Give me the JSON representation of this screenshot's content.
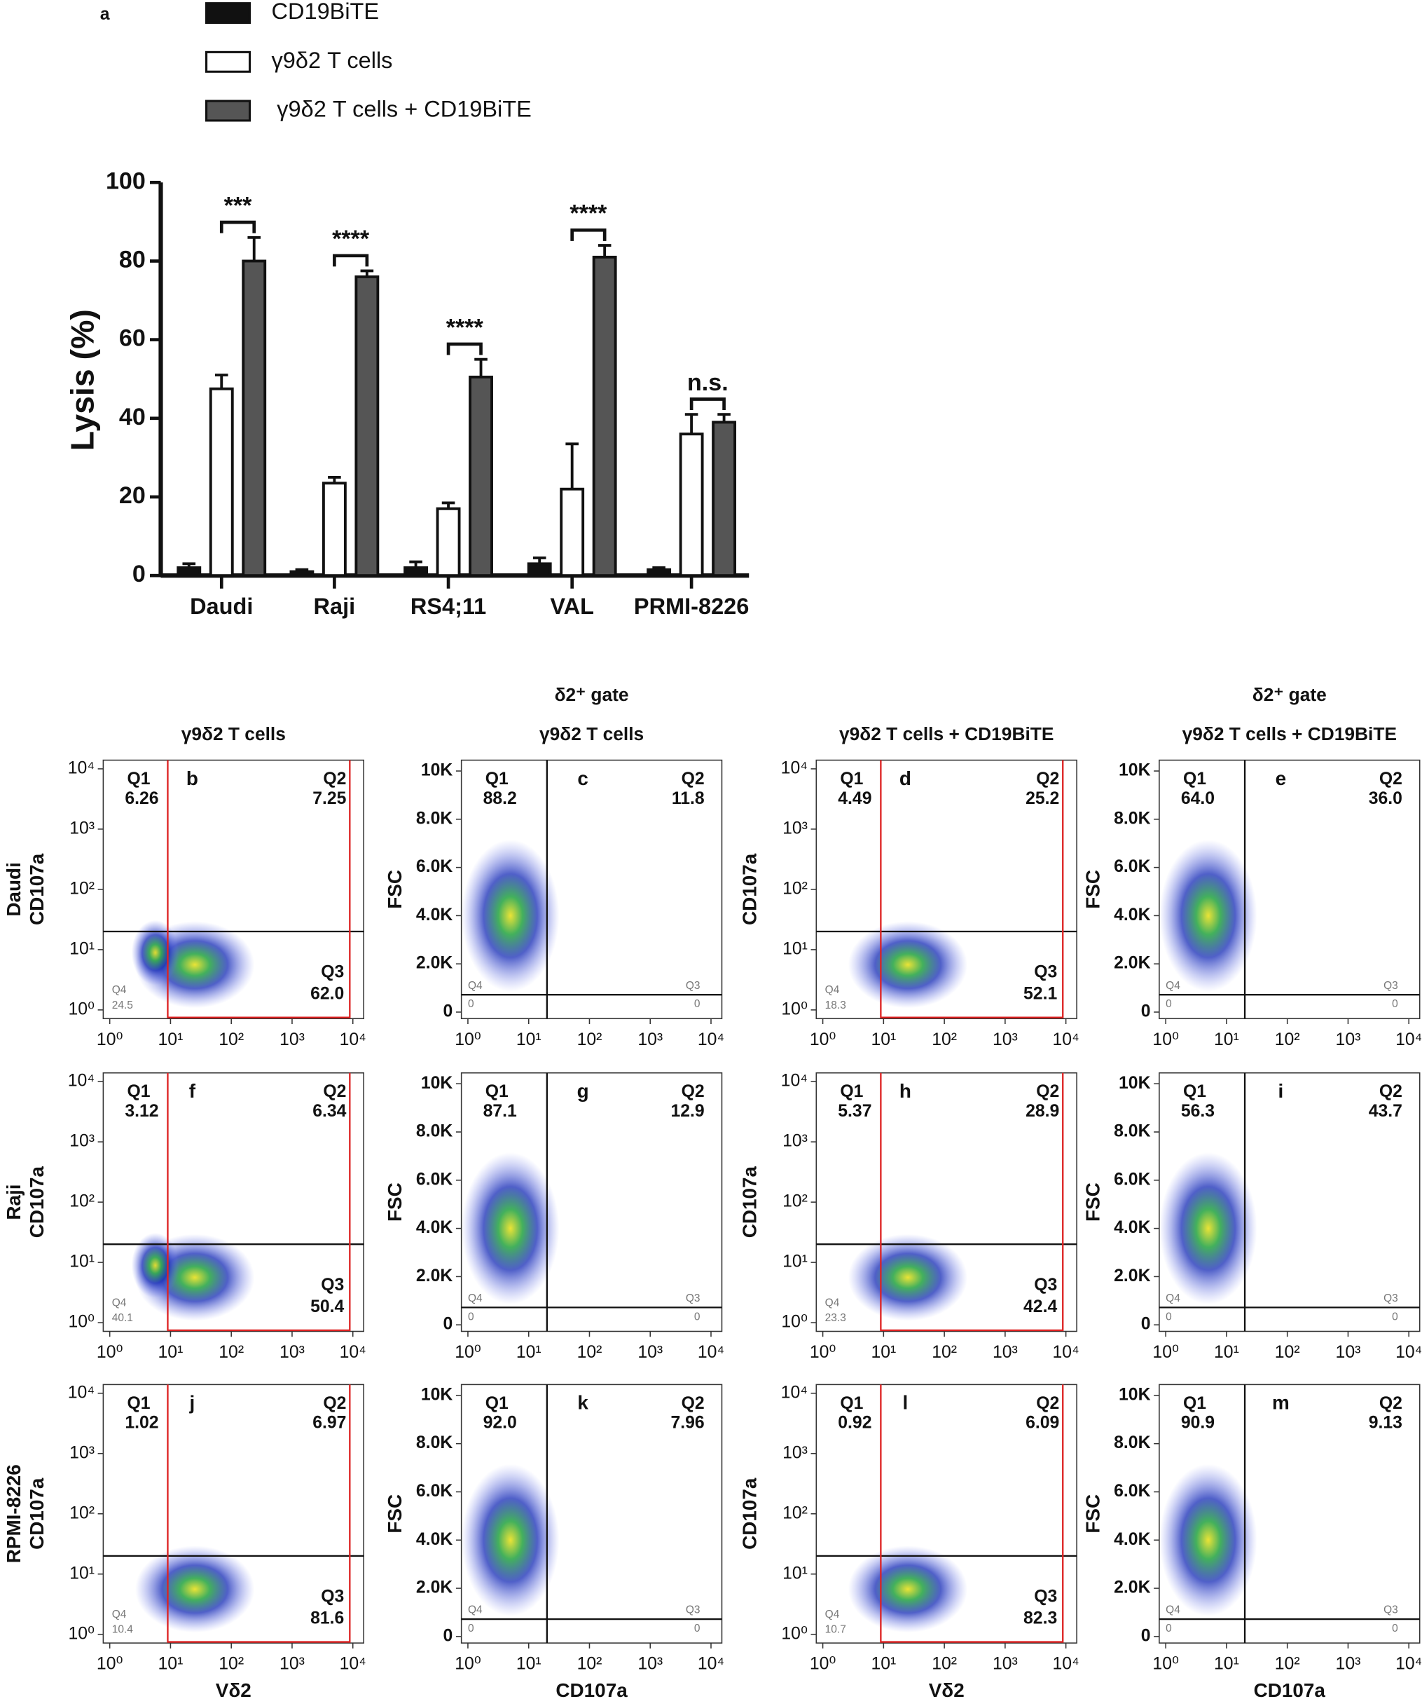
{
  "chart_data": {
    "type": "bar",
    "panel_label": "a",
    "ylabel": "Lysis (%)",
    "categories": [
      "Daudi",
      "Raji",
      "RS4;11",
      "VAL",
      "PRMI-8226"
    ],
    "series": [
      {
        "name": "CD19BiTE",
        "color": "#111111",
        "values": [
          2,
          1,
          2,
          3,
          1.5
        ],
        "errors": [
          1,
          0.5,
          1.5,
          1.5,
          0.5
        ]
      },
      {
        "name": "γ9δ2 T cells",
        "color": "#ffffff",
        "values": [
          47.5,
          23.5,
          17,
          22,
          36
        ],
        "errors": [
          3.5,
          1.5,
          1.5,
          11.5,
          5
        ]
      },
      {
        "name": "γ9δ2 T cells + CD19BiTE",
        "color": "#555555",
        "values": [
          80,
          76,
          50.5,
          81,
          39
        ],
        "errors": [
          6,
          1.5,
          4.5,
          3,
          2
        ]
      }
    ],
    "significance": [
      "***",
      "****",
      "****",
      "****",
      "n.s."
    ],
    "ylim": [
      0,
      100
    ],
    "yticks": [
      0,
      20,
      40,
      60,
      80,
      100
    ]
  },
  "flow": {
    "quadrant_names": [
      "Q1",
      "Q2",
      "Q3",
      "Q4"
    ],
    "log_ticks": [
      {
        "value": 1,
        "label": "10⁰"
      },
      {
        "value": 10,
        "label": "10¹"
      },
      {
        "value": 100,
        "label": "10²"
      },
      {
        "value": 1000,
        "label": "10³"
      },
      {
        "value": 10000,
        "label": "10⁴"
      }
    ],
    "linear_ticks": [
      0,
      {
        "value": 2000,
        "label": "2.0K"
      },
      {
        "value": 4000,
        "label": "4.0K"
      },
      {
        "value": 6000,
        "label": "6.0K"
      },
      {
        "value": 8000,
        "label": "8.0K"
      },
      {
        "value": 10000,
        "label": "10K"
      }
    ],
    "columns": [
      {
        "header": "γ9δ2 T cells",
        "y_label": "CD107a",
        "x_label": "Vδ2",
        "y_scale": "log"
      },
      {
        "header_top": "δ2⁺ gate",
        "header": "γ9δ2 T cells",
        "y_label": "FSC",
        "x_label": "CD107a",
        "y_scale": "linear"
      },
      {
        "header": "γ9δ2 T cells + CD19BiTE",
        "y_label": "CD107a",
        "x_label": "Vδ2",
        "y_scale": "log"
      },
      {
        "header_top": "δ2⁺ gate",
        "header": "γ9δ2 T cells + CD19BiTE",
        "y_label": "FSC",
        "x_label": "CD107a",
        "y_scale": "linear"
      }
    ],
    "rows": [
      {
        "label": "Daudi",
        "panels": [
          {
            "letter": "b",
            "values": [
              "6.26",
              "7.25",
              "62.0",
              "24.5"
            ]
          },
          {
            "letter": "c",
            "values": [
              "88.2",
              "11.8",
              "0",
              "0"
            ]
          },
          {
            "letter": "d",
            "values": [
              "4.49",
              "25.2",
              "52.1",
              "18.3"
            ]
          },
          {
            "letter": "e",
            "values": [
              "64.0",
              "36.0",
              "0",
              "0"
            ]
          }
        ]
      },
      {
        "label": "Raji",
        "panels": [
          {
            "letter": "f",
            "values": [
              "3.12",
              "6.34",
              "50.4",
              "40.1"
            ]
          },
          {
            "letter": "g",
            "values": [
              "87.1",
              "12.9",
              "0",
              "0"
            ]
          },
          {
            "letter": "h",
            "values": [
              "5.37",
              "28.9",
              "42.4",
              "23.3"
            ]
          },
          {
            "letter": "i",
            "values": [
              "56.3",
              "43.7",
              "0",
              "0"
            ]
          }
        ]
      },
      {
        "label": "RPMI-8226",
        "panels": [
          {
            "letter": "j",
            "values": [
              "1.02",
              "6.97",
              "81.6",
              "10.4"
            ]
          },
          {
            "letter": "k",
            "values": [
              "92.0",
              "7.96",
              "0",
              "0"
            ]
          },
          {
            "letter": "l",
            "values": [
              "0.92",
              "6.09",
              "82.3",
              "10.7"
            ]
          },
          {
            "letter": "m",
            "values": [
              "90.9",
              "9.13",
              "0",
              "0"
            ]
          }
        ]
      }
    ]
  }
}
